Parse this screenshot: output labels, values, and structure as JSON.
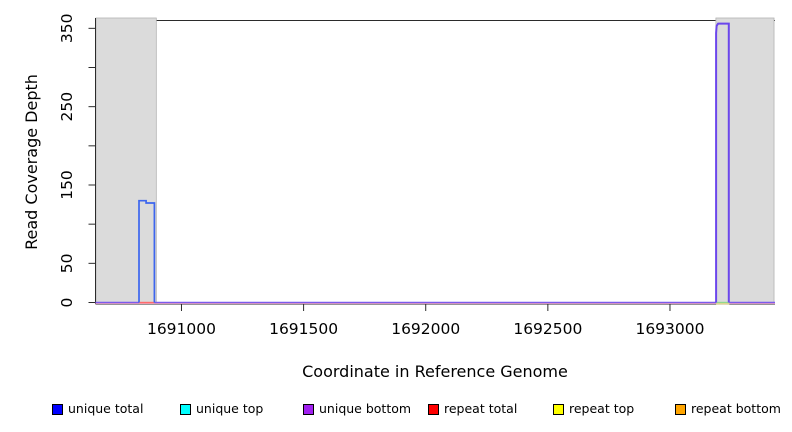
{
  "chart_data": {
    "type": "line",
    "title": "",
    "xlabel": "Coordinate in Reference Genome",
    "ylabel": "Read Coverage Depth",
    "xlim": [
      1690648,
      1693430
    ],
    "ylim": [
      0,
      360
    ],
    "grid": false,
    "plot_background": "#FFFFFF",
    "shaded_region_color": "#DBDBDB",
    "legend_position": "bottom",
    "x_ticks": [
      {
        "value": 1691000,
        "label": "1691000"
      },
      {
        "value": 1691500,
        "label": "1691500"
      },
      {
        "value": 1692000,
        "label": "1692000"
      },
      {
        "value": 1692500,
        "label": "1692500"
      },
      {
        "value": 1693000,
        "label": "1693000"
      }
    ],
    "y_ticks": [
      {
        "value": 0,
        "label": "0"
      },
      {
        "value": 50,
        "label": "50"
      },
      {
        "value": 100,
        "label": ""
      },
      {
        "value": 150,
        "label": "150"
      },
      {
        "value": 200,
        "label": ""
      },
      {
        "value": 250,
        "label": "250"
      },
      {
        "value": 300,
        "label": ""
      },
      {
        "value": 350,
        "label": "350"
      }
    ],
    "shaded_regions": [
      {
        "x1": 1690650,
        "x2": 1690897
      },
      {
        "x1": 1693188,
        "x2": 1693426
      }
    ],
    "legend": [
      {
        "label": "unique total",
        "color": "#0000FF"
      },
      {
        "label": "unique top",
        "color": "#00FFFF"
      },
      {
        "label": "unique bottom",
        "color": "#A020F0"
      },
      {
        "label": "repeat total",
        "color": "#FF0000"
      },
      {
        "label": "repeat top",
        "color": "#FFFF00"
      },
      {
        "label": "repeat bottom",
        "color": "#FFA500"
      }
    ],
    "series": [
      {
        "name": "repeat-baseline",
        "color": "#F2A4B8",
        "width": 1,
        "segments": [
          [
            [
              1690648,
              -1.3
            ],
            [
              1693430,
              -1.3
            ]
          ]
        ]
      },
      {
        "name": "repeat-top-under-second-peak",
        "color": "#EFE089",
        "width": 1.2,
        "segments": [
          [
            [
              1693189,
              -1.6
            ],
            [
              1693243,
              -1.6
            ]
          ]
        ]
      },
      {
        "name": "repeat-total-under-first-peak",
        "color": "#FF6B6B",
        "width": 1.4,
        "segments": [
          [
            [
              1690826,
              0
            ],
            [
              1690889,
              0
            ]
          ]
        ]
      },
      {
        "name": "unique-top-under-second-peak",
        "color": "#8FD98F",
        "width": 1.4,
        "segments": [
          [
            [
              1693189,
              0
            ],
            [
              1693243,
              0
            ]
          ]
        ]
      },
      {
        "name": "unique-bottom-baseline",
        "color": "#7B5BEC",
        "width": 1.6,
        "segments": [
          [
            [
              1690648,
              0
            ],
            [
              1690826,
              0
            ]
          ],
          [
            [
              1690889,
              0
            ],
            [
              1693189,
              0
            ]
          ],
          [
            [
              1693243,
              0
            ],
            [
              1693430,
              0
            ]
          ]
        ]
      },
      {
        "name": "unique-total-first-peak",
        "color": "#3D66EE",
        "width": 1.7,
        "segments": [
          [
            [
              1690826,
              0
            ],
            [
              1690826,
              130
            ],
            [
              1690855,
              130
            ],
            [
              1690855,
              127
            ],
            [
              1690889,
              127
            ],
            [
              1690889,
              0
            ]
          ]
        ]
      },
      {
        "name": "unique-bottom-second-peak",
        "color": "#6B46EC",
        "width": 2,
        "segments": [
          [
            [
              1693189,
              0
            ],
            [
              1693189,
              344
            ],
            [
              1693191,
              353
            ],
            [
              1693197,
              356
            ],
            [
              1693241,
              356
            ],
            [
              1693241,
              0
            ]
          ]
        ]
      }
    ]
  }
}
